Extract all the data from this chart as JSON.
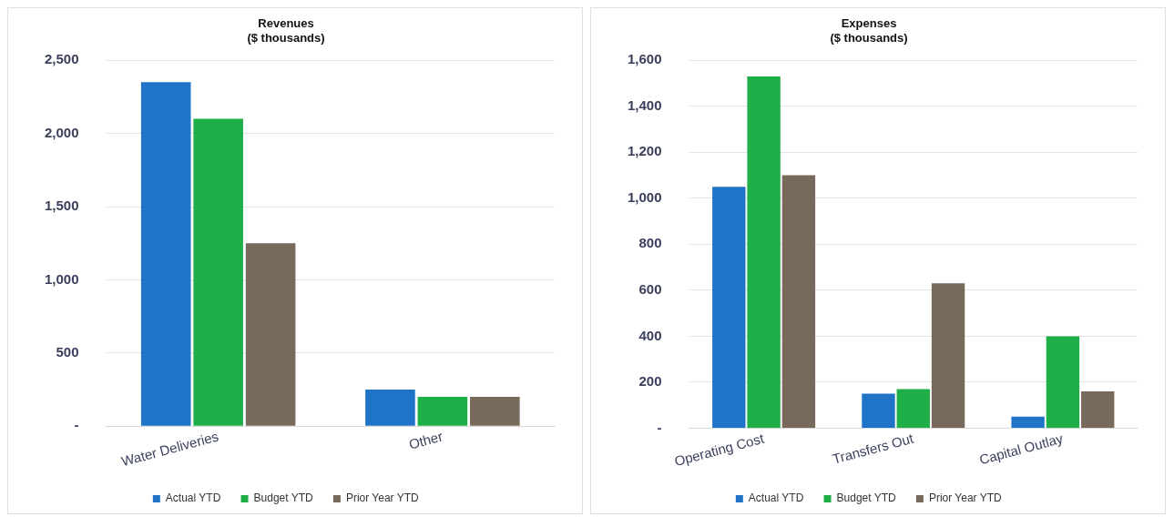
{
  "chart_data": [
    {
      "type": "bar",
      "title": "Revenues",
      "subtitle": "($ thousands)",
      "categories": [
        "Water Deliveries",
        "Other"
      ],
      "series": [
        {
          "name": "Actual YTD",
          "color": "#1f74c8",
          "values": [
            2350,
            250
          ]
        },
        {
          "name": "Budget YTD",
          "color": "#1faf48",
          "values": [
            2100,
            200
          ]
        },
        {
          "name": "Prior Year YTD",
          "color": "#776a5c",
          "values": [
            1250,
            200
          ]
        }
      ],
      "ylim": [
        0,
        2500
      ],
      "yticks": [
        {
          "value": 0,
          "label": "-"
        },
        500,
        {
          "value": 1000,
          "label": "1,000"
        },
        {
          "value": 1500,
          "label": "1,500"
        },
        {
          "value": 2000,
          "label": "2,000"
        },
        {
          "value": 2500,
          "label": "2,500"
        }
      ],
      "grid": "y",
      "legend": "bottom"
    },
    {
      "type": "bar",
      "title": "Expenses",
      "subtitle": "($ thousands)",
      "categories": [
        "Operating Cost",
        "Transfers Out",
        "Capital Outlay"
      ],
      "series": [
        {
          "name": "Actual YTD",
          "color": "#1f74c8",
          "values": [
            1050,
            150,
            50
          ]
        },
        {
          "name": "Budget YTD",
          "color": "#1faf48",
          "values": [
            1530,
            170,
            400
          ]
        },
        {
          "name": "Prior Year YTD",
          "color": "#776a5c",
          "values": [
            1100,
            630,
            160
          ]
        }
      ],
      "ylim": [
        0,
        1600
      ],
      "yticks": [
        {
          "value": 0,
          "label": "-"
        },
        200,
        400,
        600,
        800,
        {
          "value": 1000,
          "label": "1,000"
        },
        {
          "value": 1200,
          "label": "1,200"
        },
        {
          "value": 1400,
          "label": "1,400"
        },
        {
          "value": 1600,
          "label": "1,600"
        }
      ],
      "grid": "y",
      "legend": "bottom"
    }
  ]
}
